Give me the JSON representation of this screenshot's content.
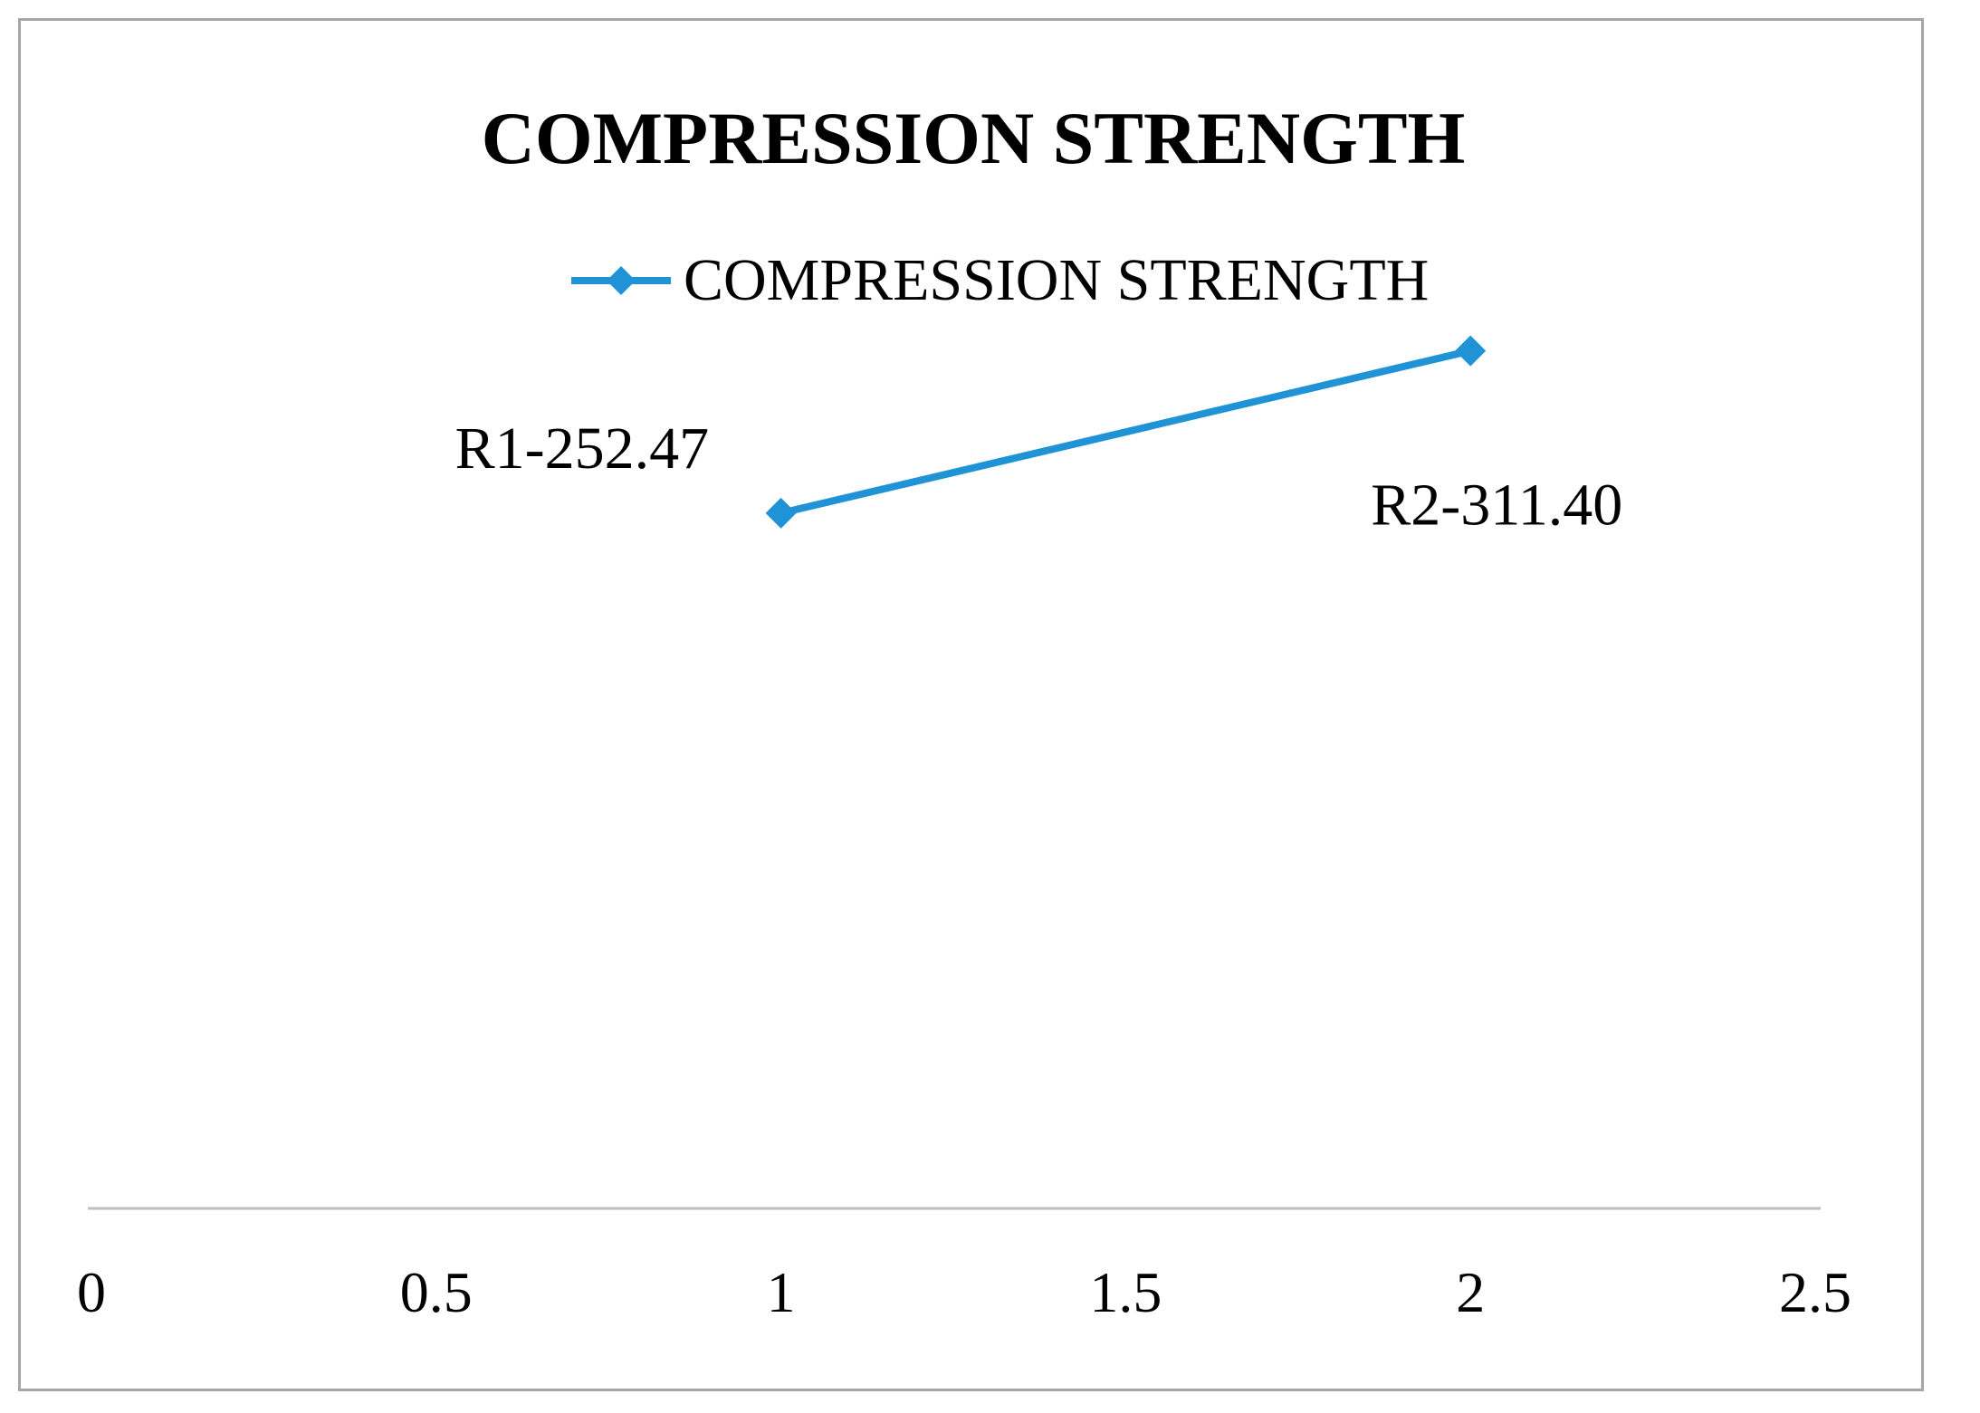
{
  "chart_data": {
    "type": "line",
    "title": "COMPRESSION STRENGTH",
    "xlabel": "",
    "ylabel": "",
    "xlim": [
      0,
      2.5
    ],
    "x_ticks": [
      "0",
      "0.5",
      "1",
      "1.5",
      "2",
      "2.5"
    ],
    "y_axis_visible": false,
    "gridlines": false,
    "legend_position": "top",
    "color": "#1f93d6",
    "series": [
      {
        "name": "COMPRESSION STRENGTH",
        "x": [
          1,
          2
        ],
        "y": [
          252.47,
          311.4
        ],
        "point_labels": [
          "R1-252.47",
          "R2-311.40"
        ]
      }
    ]
  }
}
